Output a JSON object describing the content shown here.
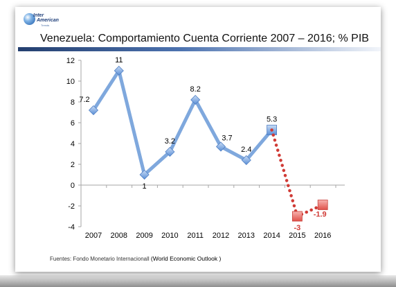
{
  "logo": {
    "line1": "Inter",
    "line2": "American",
    "line3": "Trends"
  },
  "title": "Venezuela: Comportamiento Cuenta Corriente 2007 – 2016; % PIB",
  "source": {
    "prefix": "Fuentes: Fondo Monetario Internacionall",
    "name": "(World Economic Outlook )"
  },
  "chart_data": {
    "type": "line",
    "title": "Venezuela: Comportamiento Cuenta Corriente 2007 – 2016; % PIB",
    "xlabel": "",
    "ylabel": "",
    "categories": [
      "2007",
      "2008",
      "2009",
      "2010",
      "2011",
      "2012",
      "2013",
      "2014",
      "2015",
      "2016"
    ],
    "ylim": [
      -4,
      12
    ],
    "yticks": [
      12,
      10,
      8,
      6,
      4,
      2,
      0,
      -2,
      -4
    ],
    "grid": false,
    "series": [
      {
        "name": "",
        "style": "solid",
        "color": "#7FA8DD",
        "marker": "diamond",
        "x": [
          "2007",
          "2008",
          "2009",
          "2010",
          "2011",
          "2012",
          "2013",
          "2014"
        ],
        "values": [
          7.2,
          11,
          1,
          3.2,
          8.2,
          3.7,
          2.4,
          5.3
        ],
        "labels": [
          "7.2",
          "11",
          "1",
          "3.2",
          "8.2",
          "3.7",
          "2.4",
          "5.3"
        ],
        "label_color": "#000000"
      },
      {
        "name": "",
        "style": "dotted",
        "color": "#D03B36",
        "marker": "square",
        "x": [
          "2014",
          "2015",
          "2016"
        ],
        "values": [
          5.3,
          -3,
          -1.9
        ],
        "labels": [
          "",
          "-3",
          "-1.9"
        ],
        "label_color": "#D03B36"
      }
    ]
  }
}
